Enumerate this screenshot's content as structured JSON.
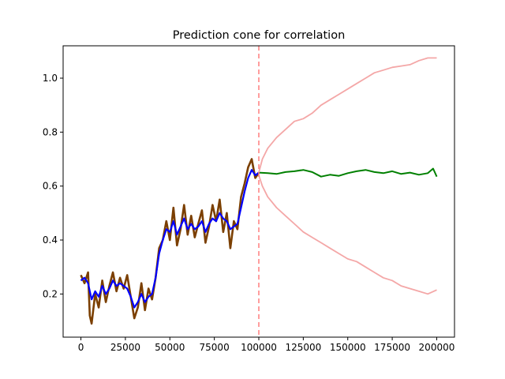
{
  "chart_data": {
    "type": "line",
    "title": "Prediction cone for correlation",
    "xlabel": "",
    "ylabel": "",
    "xlim": [
      -10000,
      210000
    ],
    "ylim": [
      0.04,
      1.12
    ],
    "xticks": [
      0,
      25000,
      50000,
      75000,
      100000,
      125000,
      150000,
      175000,
      200000
    ],
    "xtick_labels": [
      "0",
      "25000",
      "50000",
      "75000",
      "100000",
      "125000",
      "150000",
      "175000",
      "200000"
    ],
    "yticks": [
      0.2,
      0.4,
      0.6,
      0.8,
      1.0
    ],
    "ytick_labels": [
      "0.2",
      "0.4",
      "0.6",
      "0.8",
      "1.0"
    ],
    "grid": false,
    "colors": {
      "history_estimate": "#0000ff",
      "history_observed": "#7b3f00",
      "forecast_mean": "#008000",
      "cone_bounds": "#f4a7a7",
      "split_line": "#ff7f7f"
    },
    "split_x": 100000,
    "series": [
      {
        "role": "history_observed",
        "x": [
          0,
          2000,
          4000,
          5000,
          6000,
          8000,
          10000,
          12000,
          14000,
          16000,
          18000,
          20000,
          22000,
          24000,
          26000,
          28000,
          30000,
          32000,
          34000,
          36000,
          38000,
          40000,
          42000,
          44000,
          46000,
          48000,
          50000,
          52000,
          54000,
          56000,
          58000,
          60000,
          62000,
          64000,
          66000,
          68000,
          70000,
          72000,
          74000,
          76000,
          78000,
          80000,
          82000,
          84000,
          86000,
          88000,
          90000,
          92000,
          94000,
          96000,
          98000,
          100000
        ],
        "values": [
          0.27,
          0.24,
          0.28,
          0.12,
          0.09,
          0.2,
          0.15,
          0.25,
          0.17,
          0.23,
          0.28,
          0.21,
          0.26,
          0.22,
          0.27,
          0.19,
          0.11,
          0.15,
          0.24,
          0.14,
          0.22,
          0.18,
          0.26,
          0.37,
          0.4,
          0.47,
          0.4,
          0.52,
          0.38,
          0.44,
          0.53,
          0.42,
          0.49,
          0.41,
          0.46,
          0.51,
          0.39,
          0.45,
          0.53,
          0.47,
          0.55,
          0.43,
          0.5,
          0.37,
          0.47,
          0.44,
          0.56,
          0.61,
          0.67,
          0.7,
          0.63,
          0.65
        ]
      },
      {
        "role": "history_estimate",
        "x": [
          0,
          2000,
          4000,
          6000,
          8000,
          10000,
          12000,
          14000,
          16000,
          18000,
          20000,
          22000,
          24000,
          26000,
          28000,
          30000,
          32000,
          34000,
          36000,
          38000,
          40000,
          42000,
          44000,
          46000,
          48000,
          50000,
          52000,
          54000,
          56000,
          58000,
          60000,
          62000,
          64000,
          66000,
          68000,
          70000,
          72000,
          74000,
          76000,
          78000,
          80000,
          82000,
          84000,
          86000,
          88000,
          90000,
          92000,
          94000,
          96000,
          98000,
          100000
        ],
        "values": [
          0.25,
          0.26,
          0.24,
          0.18,
          0.21,
          0.19,
          0.23,
          0.2,
          0.22,
          0.25,
          0.23,
          0.24,
          0.23,
          0.22,
          0.19,
          0.15,
          0.17,
          0.2,
          0.17,
          0.19,
          0.2,
          0.26,
          0.35,
          0.4,
          0.44,
          0.43,
          0.47,
          0.42,
          0.45,
          0.48,
          0.44,
          0.46,
          0.44,
          0.45,
          0.47,
          0.43,
          0.46,
          0.48,
          0.47,
          0.5,
          0.48,
          0.47,
          0.44,
          0.45,
          0.46,
          0.52,
          0.58,
          0.63,
          0.66,
          0.64,
          0.65
        ]
      },
      {
        "role": "forecast_mean",
        "x": [
          100000,
          105000,
          110000,
          115000,
          120000,
          125000,
          130000,
          135000,
          140000,
          145000,
          150000,
          155000,
          160000,
          165000,
          170000,
          175000,
          180000,
          185000,
          190000,
          195000,
          198000,
          200000
        ],
        "values": [
          0.65,
          0.648,
          0.645,
          0.652,
          0.655,
          0.66,
          0.652,
          0.635,
          0.642,
          0.638,
          0.648,
          0.655,
          0.66,
          0.652,
          0.648,
          0.655,
          0.645,
          0.65,
          0.642,
          0.648,
          0.665,
          0.635
        ]
      },
      {
        "role": "cone_upper",
        "x": [
          100000,
          102000,
          105000,
          110000,
          115000,
          120000,
          125000,
          130000,
          135000,
          140000,
          145000,
          150000,
          155000,
          160000,
          165000,
          170000,
          175000,
          180000,
          185000,
          190000,
          195000,
          200000
        ],
        "values": [
          0.65,
          0.7,
          0.74,
          0.78,
          0.81,
          0.84,
          0.85,
          0.87,
          0.9,
          0.92,
          0.94,
          0.96,
          0.98,
          1.0,
          1.02,
          1.03,
          1.04,
          1.045,
          1.05,
          1.065,
          1.075,
          1.075
        ]
      },
      {
        "role": "cone_lower",
        "x": [
          100000,
          102000,
          105000,
          110000,
          115000,
          120000,
          125000,
          130000,
          135000,
          140000,
          145000,
          150000,
          155000,
          160000,
          165000,
          170000,
          175000,
          180000,
          185000,
          190000,
          195000,
          200000
        ],
        "values": [
          0.64,
          0.6,
          0.56,
          0.52,
          0.49,
          0.46,
          0.43,
          0.41,
          0.39,
          0.37,
          0.35,
          0.33,
          0.32,
          0.3,
          0.28,
          0.26,
          0.25,
          0.23,
          0.22,
          0.21,
          0.2,
          0.215
        ]
      }
    ]
  }
}
